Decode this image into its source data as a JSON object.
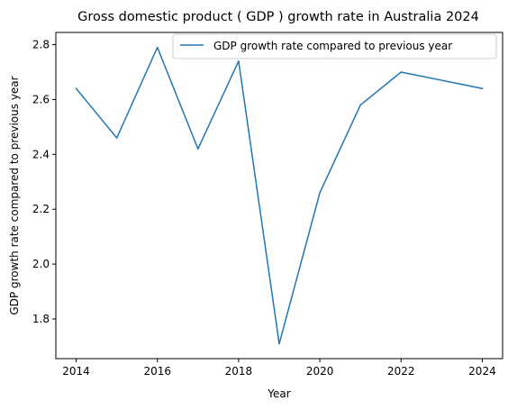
{
  "chart_data": {
    "type": "line",
    "title": "Gross domestic product ( GDP ) growth rate in Australia 2024",
    "xlabel": "Year",
    "ylabel": "GDP growth rate compared to previous year",
    "x": [
      2014,
      2015,
      2016,
      2017,
      2018,
      2019,
      2020,
      2021,
      2022,
      2024
    ],
    "series": [
      {
        "name": "GDP growth rate compared to previous year",
        "values": [
          2.64,
          2.46,
          2.79,
          2.42,
          2.74,
          1.71,
          2.26,
          2.58,
          2.7,
          2.64
        ],
        "color": "#1f77b4"
      }
    ],
    "xticks": [
      "2014",
      "2016",
      "2018",
      "2020",
      "2022",
      "2024"
    ],
    "yticks": [
      "1.8",
      "2.0",
      "2.2",
      "2.4",
      "2.6",
      "2.8"
    ],
    "xlim": [
      2013.5,
      2024.5
    ],
    "ylim": [
      1.6555,
      2.8445
    ],
    "grid": false,
    "legend_position": "upper right"
  }
}
